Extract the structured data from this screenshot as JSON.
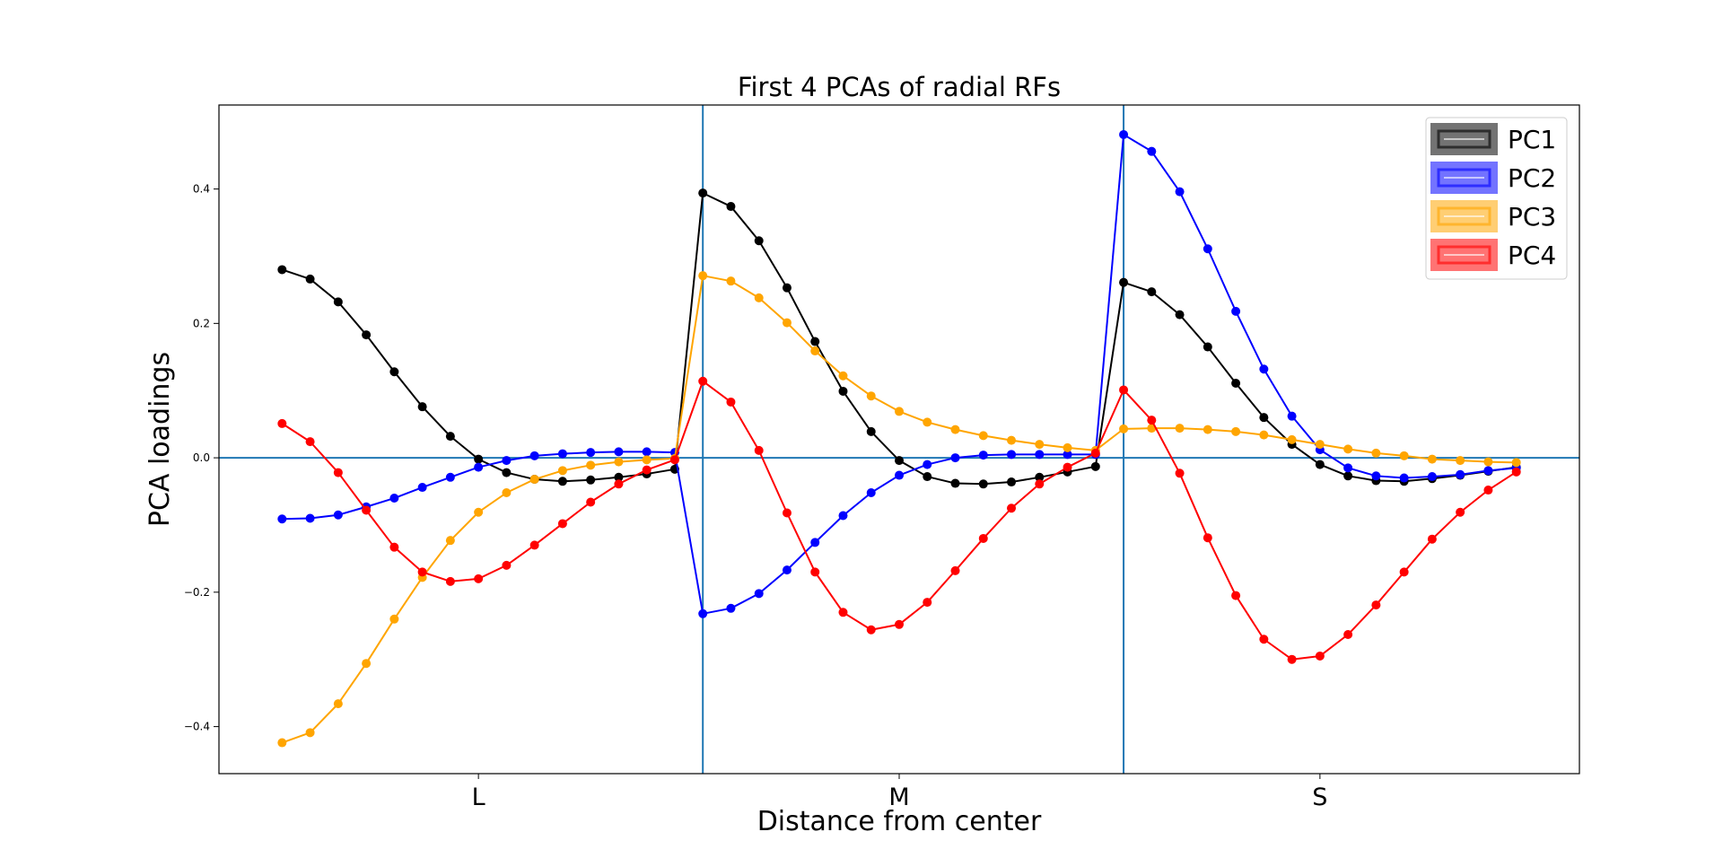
{
  "chart_data": {
    "type": "line",
    "title": "First 4 PCAs of radial RFs",
    "xlabel": "Distance from center",
    "ylabel": "PCA loadings",
    "categories": [
      "L",
      "M",
      "S"
    ],
    "category_positions": [
      7,
      22,
      37
    ],
    "xlim": [
      -2.25,
      46.25
    ],
    "ylim": [
      -0.47,
      0.525
    ],
    "yticks": [
      -0.4,
      -0.2,
      0.0,
      0.2,
      0.4
    ],
    "ytick_labels": [
      "−0.4",
      "−0.2",
      "0.0",
      "0.2",
      "0.4"
    ],
    "reference_lines": {
      "vertical": [
        15,
        30
      ],
      "horizontal": [
        0
      ],
      "color": "#1f77b4"
    },
    "legend_position": "upper right",
    "grid": false,
    "x": [
      0,
      1,
      2,
      3,
      4,
      5,
      6,
      7,
      8,
      9,
      10,
      11,
      12,
      13,
      14,
      15,
      16,
      17,
      18,
      19,
      20,
      21,
      22,
      23,
      24,
      25,
      26,
      27,
      28,
      29,
      30,
      31,
      32,
      33,
      34,
      35,
      36,
      37,
      38,
      39,
      40,
      41,
      42,
      43,
      44
    ],
    "series": [
      {
        "name": "PC1",
        "color": "#000000",
        "values": [
          0.28,
          0.266,
          0.232,
          0.183,
          0.128,
          0.076,
          0.032,
          -0.002,
          -0.022,
          -0.032,
          -0.035,
          -0.033,
          -0.029,
          -0.024,
          -0.017,
          0.394,
          0.374,
          0.323,
          0.253,
          0.173,
          0.099,
          0.039,
          -0.004,
          -0.028,
          -0.038,
          -0.039,
          -0.036,
          -0.029,
          -0.021,
          -0.013,
          0.261,
          0.247,
          0.213,
          0.165,
          0.111,
          0.06,
          0.02,
          -0.01,
          -0.027,
          -0.034,
          -0.035,
          -0.031,
          -0.026,
          -0.02,
          -0.014
        ]
      },
      {
        "name": "PC2",
        "color": "#0000ff",
        "values": [
          -0.091,
          -0.09,
          -0.085,
          -0.073,
          -0.06,
          -0.044,
          -0.029,
          -0.014,
          -0.004,
          0.003,
          0.006,
          0.008,
          0.009,
          0.009,
          0.008,
          -0.232,
          -0.224,
          -0.202,
          -0.167,
          -0.126,
          -0.086,
          -0.052,
          -0.026,
          -0.01,
          0.0,
          0.004,
          0.005,
          0.005,
          0.005,
          0.005,
          0.481,
          0.456,
          0.396,
          0.311,
          0.218,
          0.132,
          0.062,
          0.012,
          -0.015,
          -0.027,
          -0.03,
          -0.028,
          -0.025,
          -0.019,
          -0.015
        ]
      },
      {
        "name": "PC3",
        "color": "#ffa500",
        "values": [
          -0.424,
          -0.409,
          -0.366,
          -0.306,
          -0.24,
          -0.178,
          -0.123,
          -0.081,
          -0.052,
          -0.032,
          -0.019,
          -0.011,
          -0.006,
          -0.003,
          -0.001,
          0.271,
          0.263,
          0.238,
          0.201,
          0.159,
          0.122,
          0.092,
          0.069,
          0.053,
          0.042,
          0.033,
          0.026,
          0.02,
          0.015,
          0.011,
          0.043,
          0.044,
          0.044,
          0.042,
          0.039,
          0.034,
          0.027,
          0.02,
          0.013,
          0.007,
          0.003,
          -0.002,
          -0.004,
          -0.006,
          -0.007
        ]
      },
      {
        "name": "PC4",
        "color": "#ff0000",
        "values": [
          0.051,
          0.024,
          -0.022,
          -0.078,
          -0.133,
          -0.17,
          -0.184,
          -0.18,
          -0.16,
          -0.13,
          -0.098,
          -0.066,
          -0.039,
          -0.018,
          -0.003,
          0.114,
          0.083,
          0.011,
          -0.082,
          -0.17,
          -0.23,
          -0.256,
          -0.248,
          -0.215,
          -0.168,
          -0.12,
          -0.075,
          -0.039,
          -0.014,
          0.007,
          0.101,
          0.056,
          -0.023,
          -0.119,
          -0.205,
          -0.27,
          -0.3,
          -0.295,
          -0.263,
          -0.219,
          -0.17,
          -0.121,
          -0.081,
          -0.048,
          -0.021
        ]
      }
    ]
  }
}
